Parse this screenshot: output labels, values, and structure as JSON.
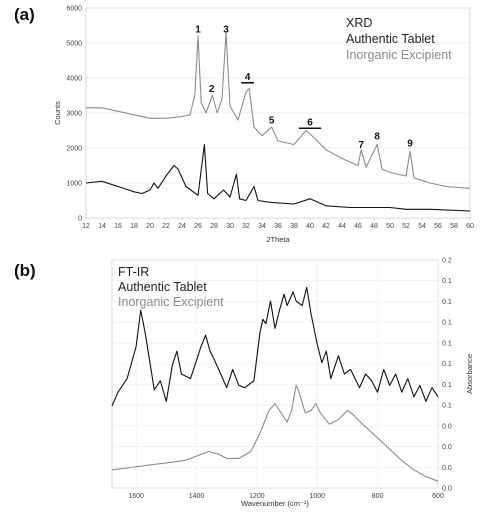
{
  "chart_data": [
    {
      "panel": "(a)",
      "type": "line",
      "legend": [
        "XRD",
        "Authentic Tablet",
        "Inorganic Excipient"
      ],
      "xlabel": "2Theta",
      "ylabel": "Counts",
      "xlim": [
        12,
        60
      ],
      "ylim": [
        0,
        6000
      ],
      "x_ticks": [
        "12",
        "14",
        "16",
        "18",
        "20",
        "22",
        "24",
        "26",
        "28",
        "30",
        "32",
        "34",
        "36",
        "38",
        "40",
        "42",
        "44",
        "46",
        "48",
        "50",
        "52",
        "54",
        "56",
        "58",
        "60"
      ],
      "y_ticks": [
        "0",
        "1000",
        "2000",
        "3000",
        "4000",
        "5000",
        "6000"
      ],
      "peak_labels": [
        {
          "label": "1",
          "x": 26.0,
          "y": 5300
        },
        {
          "label": "2",
          "x": 27.7,
          "y": 3600
        },
        {
          "label": "3",
          "x": 29.5,
          "y": 5300
        },
        {
          "label": "4",
          "x": 32.2,
          "y": 3950,
          "bar": [
            31.4,
            33.0
          ]
        },
        {
          "label": "5",
          "x": 35.2,
          "y": 2700
        },
        {
          "label": "6",
          "x": 40.0,
          "y": 2650,
          "bar": [
            38.6,
            41.4
          ]
        },
        {
          "label": "7",
          "x": 46.4,
          "y": 2000
        },
        {
          "label": "8",
          "x": 48.4,
          "y": 2250
        },
        {
          "label": "9",
          "x": 52.5,
          "y": 2050
        }
      ],
      "series": [
        {
          "name": "Inorganic Excipient",
          "color": "#8c8c8c",
          "points": [
            [
              12,
              3150
            ],
            [
              14,
              3150
            ],
            [
              16,
              3050
            ],
            [
              18,
              2950
            ],
            [
              20,
              2850
            ],
            [
              22,
              2850
            ],
            [
              24,
              2900
            ],
            [
              25,
              2950
            ],
            [
              25.6,
              3500
            ],
            [
              26,
              5200
            ],
            [
              26.4,
              3300
            ],
            [
              27,
              3000
            ],
            [
              27.8,
              3500
            ],
            [
              28.4,
              3000
            ],
            [
              29,
              3400
            ],
            [
              29.5,
              5300
            ],
            [
              30,
              3200
            ],
            [
              31,
              2800
            ],
            [
              32,
              3600
            ],
            [
              32.4,
              3700
            ],
            [
              33,
              2600
            ],
            [
              34,
              2350
            ],
            [
              35.2,
              2600
            ],
            [
              36,
              2200
            ],
            [
              38,
              2100
            ],
            [
              39.5,
              2500
            ],
            [
              40.5,
              2300
            ],
            [
              42,
              1950
            ],
            [
              44,
              1700
            ],
            [
              46,
              1500
            ],
            [
              46.4,
              1950
            ],
            [
              47,
              1450
            ],
            [
              48.4,
              2100
            ],
            [
              49,
              1400
            ],
            [
              50,
              1300
            ],
            [
              52,
              1200
            ],
            [
              52.5,
              1900
            ],
            [
              53,
              1150
            ],
            [
              55,
              1000
            ],
            [
              57,
              900
            ],
            [
              60,
              850
            ]
          ]
        },
        {
          "name": "Authentic Tablet",
          "color": "#111111",
          "points": [
            [
              12,
              1000
            ],
            [
              14,
              1050
            ],
            [
              16,
              900
            ],
            [
              18,
              750
            ],
            [
              19,
              700
            ],
            [
              20,
              800
            ],
            [
              20.5,
              1000
            ],
            [
              21,
              850
            ],
            [
              22,
              1200
            ],
            [
              23,
              1500
            ],
            [
              23.5,
              1400
            ],
            [
              24.5,
              900
            ],
            [
              26,
              650
            ],
            [
              26.8,
              2100
            ],
            [
              27.2,
              700
            ],
            [
              28,
              550
            ],
            [
              29.2,
              800
            ],
            [
              30,
              600
            ],
            [
              30.8,
              1250
            ],
            [
              31.2,
              550
            ],
            [
              32,
              500
            ],
            [
              33,
              900
            ],
            [
              33.5,
              500
            ],
            [
              35,
              450
            ],
            [
              38,
              400
            ],
            [
              40,
              550
            ],
            [
              42,
              350
            ],
            [
              45,
              300
            ],
            [
              48,
              300
            ],
            [
              50,
              300
            ],
            [
              52,
              250
            ],
            [
              55,
              250
            ],
            [
              60,
              200
            ]
          ]
        }
      ]
    },
    {
      "panel": "(b)",
      "type": "line",
      "legend": [
        "FT-IR",
        "Authentic Tablet",
        "Inorganic Excipient"
      ],
      "xlabel": "Wavenumber (cm⁻¹)",
      "ylabel": "Absorbance",
      "xlim": [
        1680,
        600
      ],
      "ylim": [
        0,
        1
      ],
      "x_ticks": [
        "1600",
        "1400",
        "1200",
        "1000",
        "800",
        "600"
      ],
      "y_ticks": [
        "0.2",
        "0.1",
        "0.1",
        "0.1",
        "0.1",
        "0.1",
        "0.1",
        "0.1",
        "0.0",
        "0.0",
        "0.0",
        "0.0"
      ],
      "series": [
        {
          "name": "Authentic Tablet",
          "color": "#111111",
          "points": [
            [
              1680,
              0.36
            ],
            [
              1660,
              0.42
            ],
            [
              1630,
              0.48
            ],
            [
              1600,
              0.62
            ],
            [
              1585,
              0.78
            ],
            [
              1570,
              0.68
            ],
            [
              1540,
              0.43
            ],
            [
              1520,
              0.47
            ],
            [
              1500,
              0.38
            ],
            [
              1480,
              0.54
            ],
            [
              1465,
              0.6
            ],
            [
              1450,
              0.5
            ],
            [
              1420,
              0.48
            ],
            [
              1400,
              0.56
            ],
            [
              1385,
              0.62
            ],
            [
              1370,
              0.67
            ],
            [
              1355,
              0.6
            ],
            [
              1340,
              0.56
            ],
            [
              1320,
              0.5
            ],
            [
              1300,
              0.44
            ],
            [
              1280,
              0.52
            ],
            [
              1260,
              0.45
            ],
            [
              1240,
              0.44
            ],
            [
              1210,
              0.47
            ],
            [
              1190,
              0.68
            ],
            [
              1180,
              0.74
            ],
            [
              1170,
              0.72
            ],
            [
              1155,
              0.82
            ],
            [
              1140,
              0.7
            ],
            [
              1125,
              0.78
            ],
            [
              1110,
              0.85
            ],
            [
              1100,
              0.8
            ],
            [
              1080,
              0.86
            ],
            [
              1070,
              0.82
            ],
            [
              1050,
              0.8
            ],
            [
              1035,
              0.88
            ],
            [
              1020,
              0.76
            ],
            [
              1000,
              0.63
            ],
            [
              985,
              0.55
            ],
            [
              970,
              0.6
            ],
            [
              955,
              0.48
            ],
            [
              930,
              0.58
            ],
            [
              910,
              0.5
            ],
            [
              890,
              0.52
            ],
            [
              860,
              0.44
            ],
            [
              840,
              0.5
            ],
            [
              820,
              0.47
            ],
            [
              800,
              0.42
            ],
            [
              780,
              0.52
            ],
            [
              760,
              0.45
            ],
            [
              740,
              0.5
            ],
            [
              720,
              0.42
            ],
            [
              700,
              0.48
            ],
            [
              680,
              0.4
            ],
            [
              660,
              0.45
            ],
            [
              640,
              0.38
            ],
            [
              620,
              0.44
            ],
            [
              600,
              0.4
            ]
          ]
        },
        {
          "name": "Inorganic Excipient",
          "color": "#8c8c8c",
          "points": [
            [
              1680,
              0.08
            ],
            [
              1620,
              0.09
            ],
            [
              1560,
              0.1
            ],
            [
              1500,
              0.11
            ],
            [
              1440,
              0.12
            ],
            [
              1400,
              0.14
            ],
            [
              1360,
              0.16
            ],
            [
              1330,
              0.15
            ],
            [
              1300,
              0.13
            ],
            [
              1260,
              0.13
            ],
            [
              1220,
              0.16
            ],
            [
              1190,
              0.24
            ],
            [
              1160,
              0.34
            ],
            [
              1140,
              0.37
            ],
            [
              1120,
              0.33
            ],
            [
              1100,
              0.29
            ],
            [
              1085,
              0.34
            ],
            [
              1070,
              0.45
            ],
            [
              1060,
              0.42
            ],
            [
              1040,
              0.33
            ],
            [
              1020,
              0.34
            ],
            [
              1005,
              0.37
            ],
            [
              990,
              0.33
            ],
            [
              960,
              0.28
            ],
            [
              930,
              0.3
            ],
            [
              900,
              0.34
            ],
            [
              880,
              0.32
            ],
            [
              850,
              0.28
            ],
            [
              800,
              0.22
            ],
            [
              760,
              0.17
            ],
            [
              720,
              0.12
            ],
            [
              680,
              0.08
            ],
            [
              640,
              0.05
            ],
            [
              600,
              0.03
            ]
          ]
        }
      ]
    }
  ]
}
